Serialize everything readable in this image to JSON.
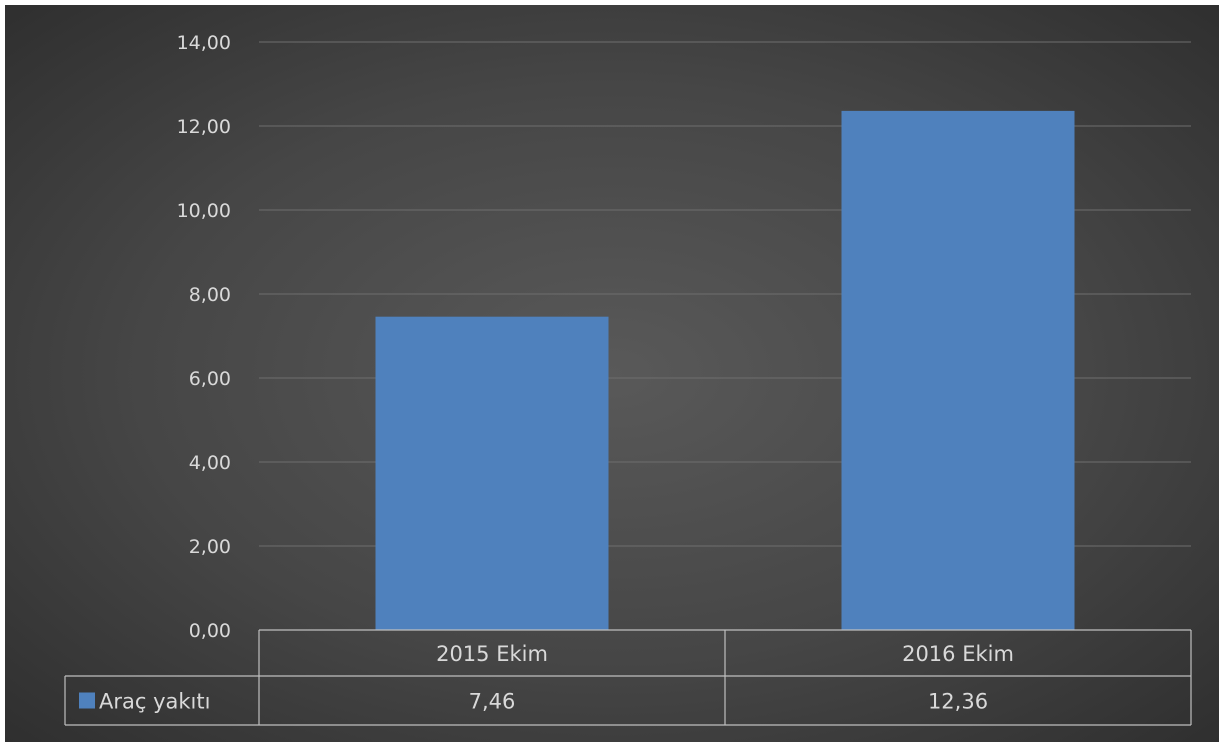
{
  "chart_data": {
    "type": "bar",
    "categories": [
      "2015 Ekim",
      "2016 Ekim"
    ],
    "series": [
      {
        "name": "Araç yakıtı",
        "values": [
          7.46,
          12.36
        ],
        "value_labels": [
          "7,46",
          "12,36"
        ],
        "color": "#4f81bd"
      }
    ],
    "ylim": [
      0,
      14
    ],
    "yticks": [
      0,
      2,
      4,
      6,
      8,
      10,
      12,
      14
    ],
    "ytick_labels": [
      "0,00",
      "2,00",
      "4,00",
      "6,00",
      "8,00",
      "10,00",
      "12,00",
      "14,00"
    ],
    "grid": true,
    "legend": "data-table",
    "title": "",
    "xlabel": "",
    "ylabel": ""
  },
  "colors": {
    "bar": "#4f81bd",
    "gridline": "#6e6e6e",
    "table_border": "#bfbfbf",
    "text": "#d9d9d9"
  }
}
